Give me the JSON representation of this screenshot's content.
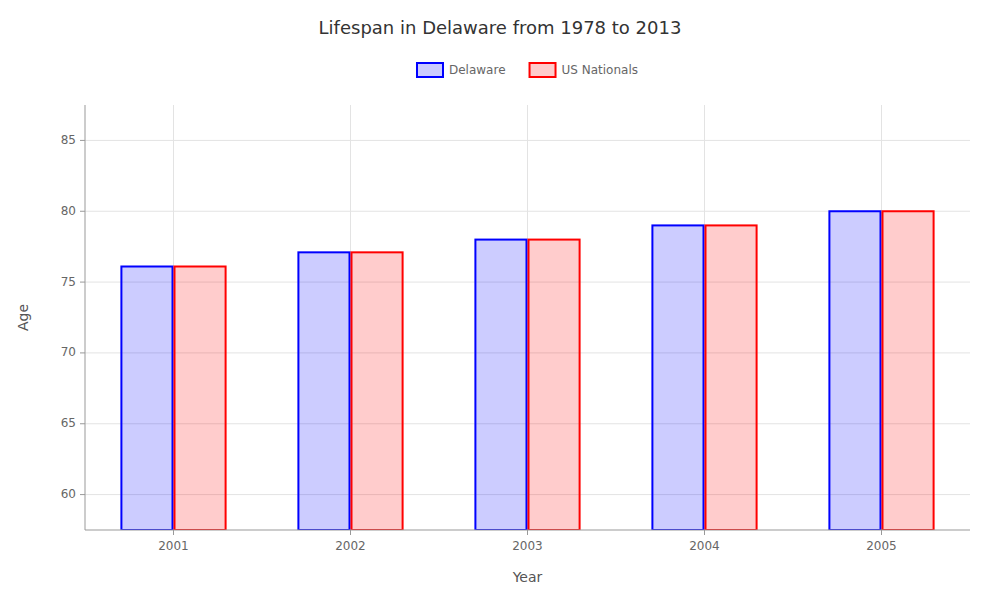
{
  "chart_data": {
    "type": "bar",
    "title": "Lifespan in Delaware from 1978 to 2013",
    "xlabel": "Year",
    "ylabel": "Age",
    "categories": [
      "2001",
      "2002",
      "2003",
      "2004",
      "2005"
    ],
    "series": [
      {
        "name": "Delaware",
        "color": "#0000FF",
        "values": [
          76.1,
          77.1,
          78.0,
          79.0,
          80.0
        ]
      },
      {
        "name": "US Nationals",
        "color": "#FF0000",
        "values": [
          76.1,
          77.1,
          78.0,
          79.0,
          80.0
        ]
      }
    ],
    "ylim": [
      57.5,
      87.5
    ],
    "yticks": [
      60,
      65,
      70,
      75,
      80,
      85
    ],
    "grid": true,
    "legend": "top"
  }
}
